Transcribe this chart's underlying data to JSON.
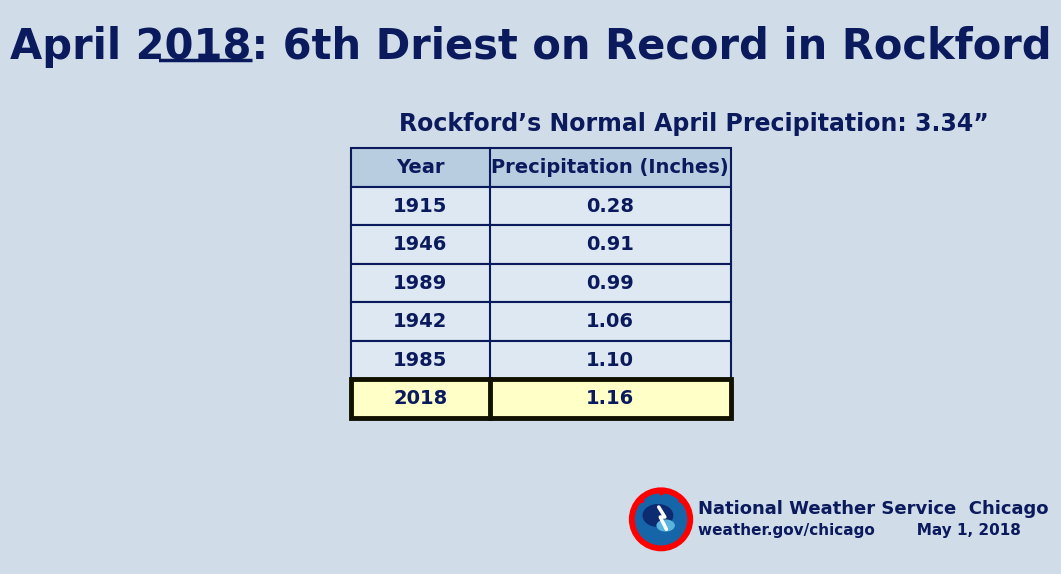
{
  "title_part1": "April 2018",
  "title_part2": ": 6",
  "title_super": "th",
  "title_part3": " Driest on Record in Rockford",
  "subtitle": "Rockford’s Normal April Precipitation: 3.34”",
  "col_headers": [
    "Year",
    "Precipitation (Inches)"
  ],
  "rows": [
    [
      "1915",
      "0.28"
    ],
    [
      "1946",
      "0.91"
    ],
    [
      "1989",
      "0.99"
    ],
    [
      "1942",
      "1.06"
    ],
    [
      "1985",
      "1.10"
    ],
    [
      "2018",
      "1.16"
    ]
  ],
  "highlight_row": 5,
  "bg_color": "#d0dce8",
  "table_header_bg": "#b8cde0",
  "table_row_bg": "#dde8f2",
  "highlight_bg": "#ffffc8",
  "highlight_border": "#111100",
  "text_color": "#0a1a5c",
  "nws_line1": "National Weather Service  Chicago",
  "nws_line2": "weather.gov/chicago",
  "nws_line3": "May 1, 2018",
  "title_fontsize": 30,
  "subtitle_fontsize": 17,
  "table_fontsize": 14
}
